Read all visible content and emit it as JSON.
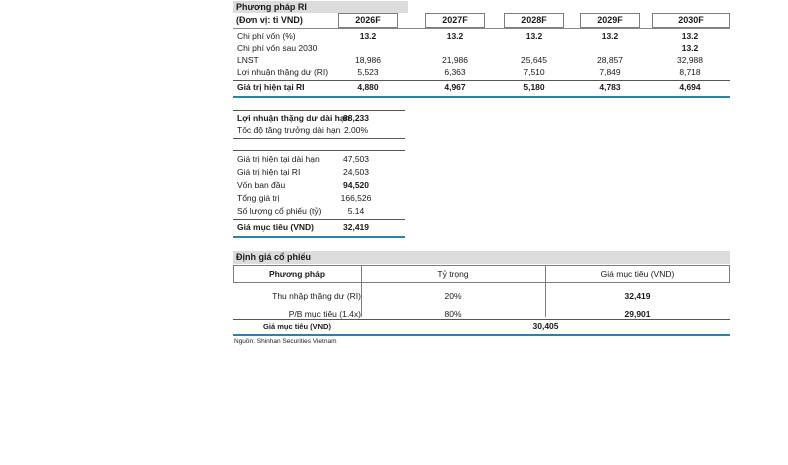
{
  "ri": {
    "title": "Phương pháp RI",
    "unit": "(Đơn vị: tỉ VND)",
    "years": [
      "2026F",
      "2027F",
      "2028F",
      "2029F",
      "2030F"
    ],
    "rows": [
      {
        "label": "Chi phí vốn (%)",
        "values": [
          "13.2",
          "13.2",
          "13.2",
          "13.2",
          "13.2"
        ]
      },
      {
        "label": "Chi phí vốn sau 2030",
        "values": [
          "",
          "",
          "",
          "",
          "13.2"
        ]
      },
      {
        "label": "LNST",
        "values": [
          "18,986",
          "21,986",
          "25,645",
          "28,857",
          "32,988"
        ]
      },
      {
        "label": "Lợi nhuận thặng dư (RI)",
        "values": [
          "5,523",
          "6,363",
          "7,510",
          "7,849",
          "8,718"
        ]
      },
      {
        "label": "Giá trị hiện tại RI",
        "values": [
          "4,880",
          "4,967",
          "5,180",
          "4,783",
          "4,694"
        ]
      }
    ]
  },
  "longterm": {
    "rows": [
      {
        "label": "Lợi nhuận thặng dư dài hạn",
        "value": "88,233"
      },
      {
        "label": "Tốc độ tăng trưởng dài hạn",
        "value": "2.00%"
      }
    ]
  },
  "valuation_summary": {
    "rows": [
      {
        "label": "Giá trị hiện tại dài hạn",
        "value": "47,503"
      },
      {
        "label": "Giá trị hiện tại RI",
        "value": "24,503"
      },
      {
        "label": "Vốn ban đầu",
        "value": "94,520"
      },
      {
        "label": "Tổng giá trị",
        "value": "166,526"
      },
      {
        "label": "Số lượng cổ phiếu (tỷ)",
        "value": "5.14"
      },
      {
        "label": "Giá mục tiêu (VND)",
        "value": "32,419"
      }
    ]
  },
  "stock_valuation": {
    "title": "Định giá cổ phiếu",
    "headers": [
      "Phương pháp",
      "Tỷ trọng",
      "Giá mục tiêu (VND)"
    ],
    "rows": [
      {
        "method": "Thu nhập thặng dư (RI)",
        "weight": "20%",
        "target": "32,419"
      },
      {
        "method": "P/B mục tiêu (1.4x)",
        "weight": "80%",
        "target": "29,901"
      }
    ],
    "total_label": "Giá mục tiêu (VND)",
    "total_value": "30,405"
  },
  "source": "Nguồn: Shinhan Securities Vietnam"
}
